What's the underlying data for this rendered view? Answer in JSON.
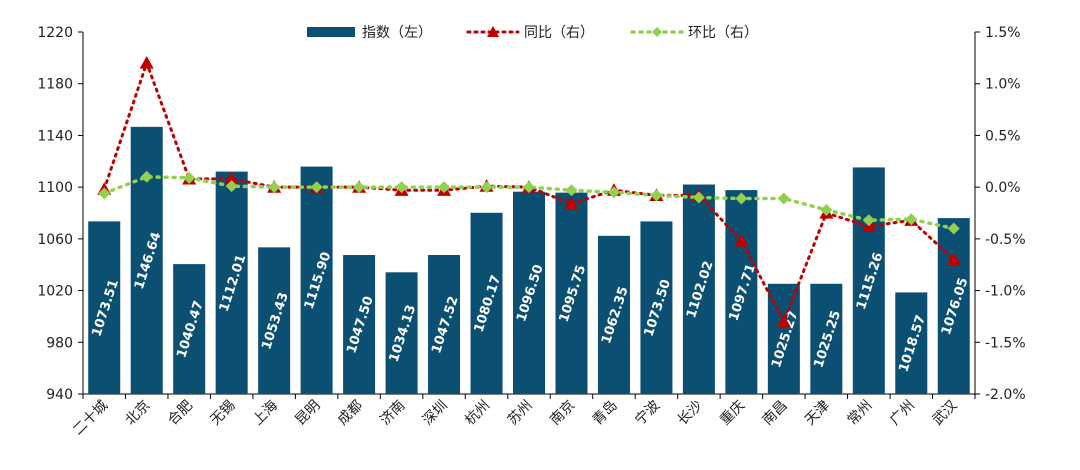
{
  "chart_data": {
    "type": "bar",
    "categories": [
      "二十城",
      "北京",
      "合肥",
      "无锡",
      "上海",
      "昆明",
      "成都",
      "济南",
      "深圳",
      "杭州",
      "苏州",
      "南京",
      "青岛",
      "宁波",
      "长沙",
      "重庆",
      "南昌",
      "天津",
      "常州",
      "广州",
      "武汉"
    ],
    "series": [
      {
        "name": "指数（左）",
        "type": "bar",
        "axis": "left",
        "color": "#0b4f72",
        "values": [
          1073.51,
          1146.64,
          1040.47,
          1112.01,
          1053.43,
          1115.9,
          1047.5,
          1034.13,
          1047.52,
          1080.17,
          1096.5,
          1095.75,
          1062.35,
          1073.5,
          1102.02,
          1097.71,
          1025.27,
          1025.25,
          1115.26,
          1018.57,
          1076.05
        ]
      },
      {
        "name": "同比（右）",
        "type": "line",
        "axis": "right",
        "color": "#c00000",
        "values": [
          -0.02,
          1.2,
          0.08,
          0.08,
          0.0,
          0.0,
          0.0,
          -0.03,
          -0.03,
          0.01,
          0.0,
          -0.16,
          -0.03,
          -0.08,
          -0.08,
          -0.52,
          -1.3,
          -0.25,
          -0.38,
          -0.32,
          -0.7
        ]
      },
      {
        "name": "环比（右）",
        "type": "line",
        "axis": "right",
        "color": "#92d050",
        "values": [
          -0.06,
          0.1,
          0.09,
          0.01,
          0.0,
          0.0,
          0.0,
          0.0,
          0.0,
          0.0,
          0.0,
          -0.03,
          -0.05,
          -0.08,
          -0.1,
          -0.11,
          -0.11,
          -0.22,
          -0.32,
          -0.31,
          -0.4
        ]
      }
    ],
    "y_left": {
      "ylim": [
        940,
        1220
      ],
      "ticks": [
        "940",
        "980",
        "1020",
        "1060",
        "1100",
        "1140",
        "1180",
        "1220"
      ]
    },
    "y_right": {
      "ylim": [
        -2.0,
        1.5
      ],
      "ticks": [
        "-2.0%",
        "-1.5%",
        "-1.0%",
        "-0.5%",
        "0.0%",
        "0.5%",
        "1.0%",
        "1.5%"
      ]
    },
    "bar_labels": [
      "1073.51",
      "1146.64",
      "1040.47",
      "1112.01",
      "1053.43",
      "1115.90",
      "1047.50",
      "1034.13",
      "1047.52",
      "1080.17",
      "1096.50",
      "1095.75",
      "1062.35",
      "1073.50",
      "1102.02",
      "1097.71",
      "1025.27",
      "1025.25",
      "1115.26",
      "1018.57",
      "1076.05"
    ],
    "legend": [
      "指数（左）",
      "同比（右）",
      "环比（右）"
    ],
    "legend_position": "top-center",
    "grid": false
  }
}
